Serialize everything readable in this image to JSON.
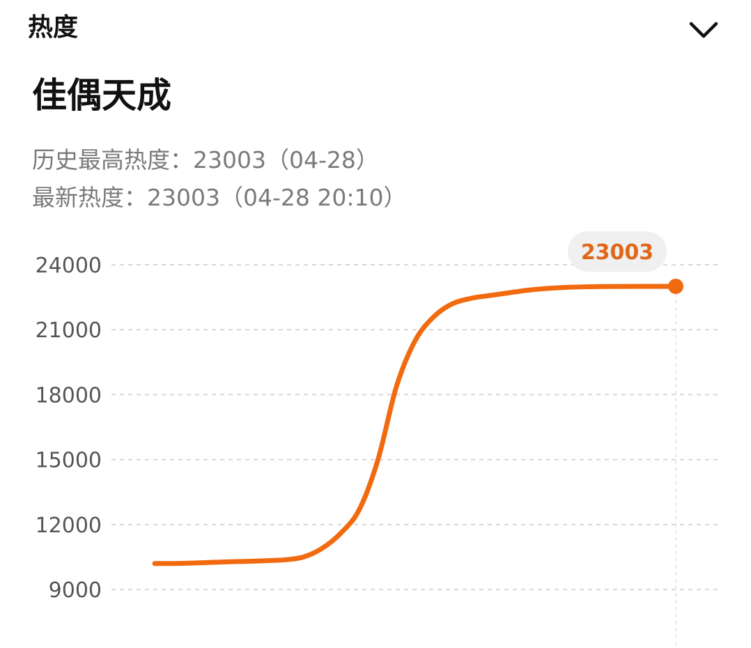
{
  "header": {
    "title": "热度",
    "toggle_icon": "chevron-down-icon"
  },
  "topic": {
    "title": "佳偶天成"
  },
  "stats": {
    "peak_label": "历史最高热度：",
    "peak_value": "23003",
    "peak_date": "（04-28）",
    "latest_label": "最新热度：",
    "latest_value": "23003",
    "latest_time": "（04-28 20:10）"
  },
  "colors": {
    "line": "#f26a10",
    "tooltip_bg": "#f0f0f0",
    "tooltip_text": "#e0671a",
    "grid": "#cccccc"
  },
  "chart_data": {
    "type": "line",
    "y_ticks": [
      24000,
      21000,
      18000,
      15000,
      12000,
      9000
    ],
    "ylim": [
      6000,
      24000
    ],
    "grid": true,
    "series": [
      {
        "values": [
          10200,
          10200,
          10220,
          10250,
          10280,
          10300,
          10330,
          10370,
          10500,
          10900,
          11600,
          12700,
          15000,
          18400,
          20500,
          21600,
          22200,
          22450,
          22580,
          22700,
          22820,
          22900,
          22950,
          22980,
          22995,
          23000,
          23003,
          23003,
          23003
        ]
      }
    ],
    "highlight": {
      "value": 23003,
      "label": "23003"
    }
  }
}
